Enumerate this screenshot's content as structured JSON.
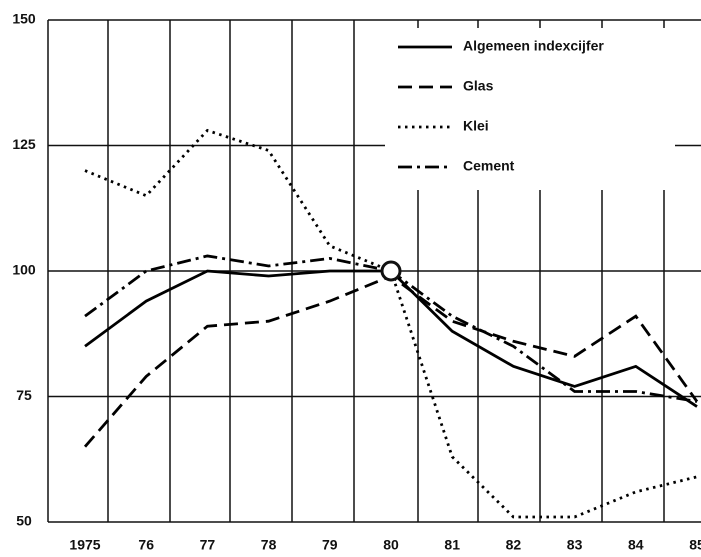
{
  "chart_data": {
    "type": "line",
    "categories": [
      "1975",
      "76",
      "77",
      "78",
      "79",
      "80",
      "81",
      "82",
      "83",
      "84",
      "85"
    ],
    "series": [
      {
        "name": "Algemeen indexcijfer",
        "color": "#000000",
        "dash": "solid",
        "values": [
          85,
          94,
          100,
          99,
          100,
          100,
          88,
          81,
          77,
          81,
          73
        ]
      },
      {
        "name": "Glas",
        "color": "#000000",
        "dash": "dashed",
        "values": [
          65,
          79,
          89,
          90,
          94,
          99,
          90,
          86,
          83,
          91,
          74
        ]
      },
      {
        "name": "Klei",
        "color": "#000000",
        "dash": "dotted",
        "values": [
          120,
          115,
          128,
          124,
          105,
          100,
          63,
          51,
          51,
          56,
          59
        ]
      },
      {
        "name": "Cement",
        "color": "#000000",
        "dash": "dashdot",
        "values": [
          91,
          100,
          103,
          101,
          102.5,
          100,
          91,
          85,
          76,
          76,
          74
        ]
      }
    ],
    "ylim": [
      50,
      150
    ],
    "yticks": [
      50,
      75,
      100,
      125,
      150
    ],
    "grid": true,
    "legend": "upper right"
  }
}
